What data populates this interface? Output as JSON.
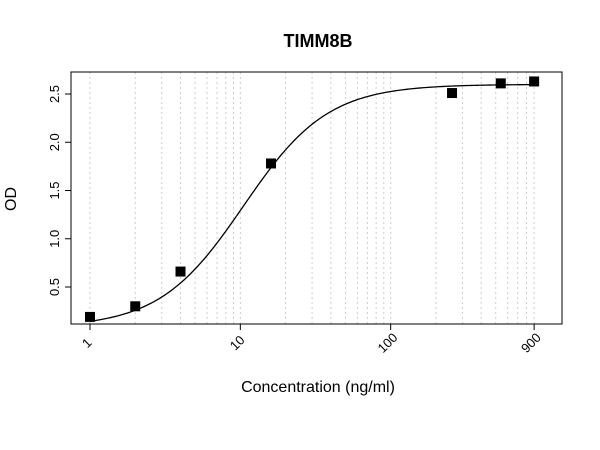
{
  "chart_data": {
    "type": "scatter",
    "title": "TIMM8B",
    "xlabel": "Concentration (ng/ml)",
    "ylabel": "OD",
    "x_scale": "log",
    "xlim": [
      1,
      1000
    ],
    "ylim": [
      0.14,
      2.7
    ],
    "x_ticks": [
      1,
      10,
      100,
      900
    ],
    "x_tick_labels": [
      "1",
      "10",
      "100",
      "900"
    ],
    "y_ticks": [
      0.5,
      1.0,
      1.5,
      2.0,
      2.5
    ],
    "y_tick_labels": [
      "0.5",
      "1.0",
      "1.5",
      "2.0",
      "2.5"
    ],
    "grid": "vertical dotted, log minor",
    "series": [
      {
        "points": [
          {
            "x": 1,
            "y": 0.19
          },
          {
            "x": 2,
            "y": 0.3
          },
          {
            "x": 4,
            "y": 0.66
          },
          {
            "x": 16,
            "y": 1.78
          },
          {
            "x": 256,
            "y": 2.51
          },
          {
            "x": 540,
            "y": 2.61
          },
          {
            "x": 900,
            "y": 2.63
          }
        ]
      }
    ],
    "fit_curve": {
      "model": "4PL",
      "bottom": 0.08,
      "top": 2.6,
      "ec50": 10.5,
      "hill": 1.55
    }
  }
}
